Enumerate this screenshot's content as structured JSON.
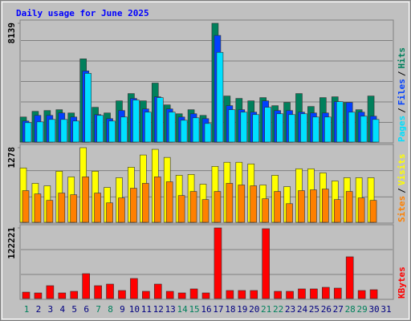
{
  "chart_data": {
    "type": "bar",
    "title": "Daily usage for June 2025",
    "categories": [
      "1",
      "2",
      "3",
      "4",
      "5",
      "6",
      "7",
      "8",
      "9",
      "10",
      "11",
      "12",
      "13",
      "14",
      "15",
      "16",
      "17",
      "18",
      "19",
      "20",
      "21",
      "22",
      "23",
      "24",
      "25",
      "26",
      "27",
      "28",
      "29",
      "30",
      "31"
    ],
    "category_colors": [
      "#00805c",
      "#000080",
      "#000080",
      "#000080",
      "#000080",
      "#000080",
      "#00805c",
      "#00805c",
      "#000080",
      "#000080",
      "#000080",
      "#000080",
      "#000080",
      "#00805c",
      "#00805c",
      "#000080",
      "#000080",
      "#000080",
      "#000080",
      "#000080",
      "#00805c",
      "#00805c",
      "#000080",
      "#000080",
      "#000080",
      "#000080",
      "#000080",
      "#00805c",
      "#00805c",
      "#000080",
      "#000080"
    ],
    "panels": [
      {
        "ylim": [
          0,
          8139
        ],
        "yticks": [
          8139
        ],
        "separator": "/",
        "series": [
          {
            "name": "Pages",
            "color": "#00e0ff",
            "values": [
              1329,
              1384,
              1550,
              1550,
              1440,
              4706,
              1827,
              1440,
              1716,
              2879,
              2049,
              3045,
              2049,
              1495,
              1661,
              1274,
              6146,
              2215,
              2049,
              1883,
              2381,
              1938,
              1883,
              1938,
              1716,
              1716,
              2768,
              2049,
              1772,
              1550,
              null
            ]
          },
          {
            "name": "Files",
            "color": "#0040ff",
            "values": [
              1440,
              1827,
              1827,
              1993,
              1716,
              4872,
              1883,
              1606,
              2159,
              2990,
              2270,
              3101,
              2270,
              1716,
              1938,
              1606,
              7309,
              2492,
              2215,
              2049,
              2824,
              2159,
              2159,
              2049,
              1993,
              1993,
              2768,
              2713,
              2049,
              1772,
              null
            ]
          },
          {
            "name": "Hits",
            "color": "#00805c",
            "values": [
              1716,
              2104,
              2159,
              2215,
              1993,
              5703,
              2381,
              1993,
              2824,
              3322,
              2824,
              4042,
              2547,
              1938,
              2215,
              1827,
              8139,
              3156,
              2990,
              2824,
              3045,
              2492,
              2713,
              3322,
              2436,
              3045,
              3101,
              2713,
              2215,
              3156,
              null
            ]
          }
        ]
      },
      {
        "ylim": [
          0,
          1278
        ],
        "yticks": [
          1278
        ],
        "separator": "/",
        "series": [
          {
            "name": "Sites",
            "color": "#ff8000",
            "values": [
              542,
              486,
              375,
              500,
              472,
              778,
              500,
              333,
              417,
              583,
              667,
              778,
              694,
              458,
              528,
              389,
              528,
              667,
              639,
              625,
              403,
              528,
              319,
              542,
              556,
              569,
              389,
              528,
              417,
              375,
              null
            ]
          },
          {
            "name": "Visits",
            "color": "#ffff00",
            "values": [
              931,
              667,
              625,
              875,
              778,
              1278,
              875,
              597,
              764,
              944,
              1153,
              1250,
              1111,
              806,
              820,
              653,
              958,
              1028,
              1028,
              1000,
              639,
              806,
              611,
              917,
              917,
              847,
              708,
              764,
              764,
              764,
              null
            ]
          }
        ]
      },
      {
        "ylim": [
          0,
          122221
        ],
        "yticks": [
          122221
        ],
        "separator": "/",
        "series": [
          {
            "name": "KBytes",
            "color": "#ff0000",
            "values": [
              11111,
              9722,
              22222,
              9722,
              12500,
              43056,
              22222,
              25000,
              13889,
              34722,
              12500,
              25000,
              12500,
              9722,
              16667,
              9722,
              122221,
              13889,
              13889,
              13889,
              120832,
              12500,
              12500,
              16667,
              16667,
              19444,
              18056,
              72222,
              13889,
              15278,
              null
            ]
          }
        ]
      }
    ]
  }
}
